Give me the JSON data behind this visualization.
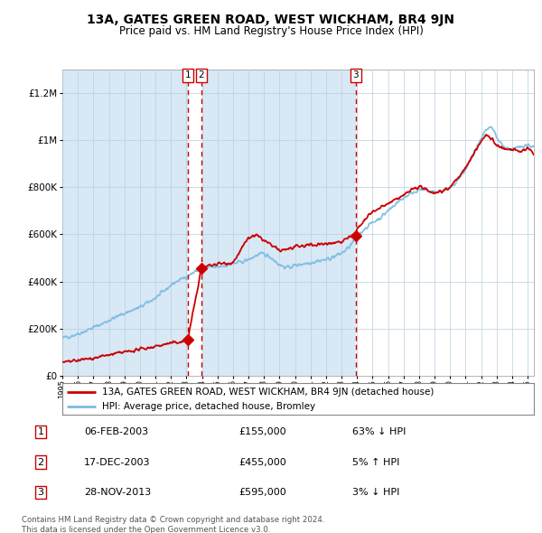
{
  "title": "13A, GATES GREEN ROAD, WEST WICKHAM, BR4 9JN",
  "subtitle": "Price paid vs. HM Land Registry's House Price Index (HPI)",
  "legend_line1": "13A, GATES GREEN ROAD, WEST WICKHAM, BR4 9JN (detached house)",
  "legend_line2": "HPI: Average price, detached house, Bromley",
  "table": [
    {
      "num": "1",
      "date": "06-FEB-2003",
      "price": "£155,000",
      "pct": "63% ↓ HPI"
    },
    {
      "num": "2",
      "date": "17-DEC-2003",
      "price": "£455,000",
      "pct": "5% ↑ HPI"
    },
    {
      "num": "3",
      "date": "28-NOV-2013",
      "price": "£595,000",
      "pct": "3% ↓ HPI"
    }
  ],
  "footnote1": "Contains HM Land Registry data © Crown copyright and database right 2024.",
  "footnote2": "This data is licensed under the Open Government Licence v3.0.",
  "sale_dates_dec": [
    2003.096,
    2003.962,
    2013.91
  ],
  "sale_prices": [
    155000,
    455000,
    595000
  ],
  "sale_labels": [
    "1",
    "2",
    "3"
  ],
  "hpi_color": "#7abce0",
  "price_color": "#cc0000",
  "background_color": "#d8e8f5",
  "plot_bg": "#ffffff",
  "grid_color": "#b8cfe0",
  "ylim": [
    0,
    1300000
  ],
  "xlim_start": 1995.0,
  "xlim_end": 2025.4,
  "hpi_anchors_t": [
    1995.0,
    1995.5,
    1996.0,
    1996.5,
    1997.0,
    1997.5,
    1998.0,
    1998.5,
    1999.0,
    1999.5,
    2000.0,
    2000.5,
    2001.0,
    2001.5,
    2002.0,
    2002.5,
    2003.0,
    2003.5,
    2004.0,
    2004.5,
    2005.0,
    2005.5,
    2006.0,
    2006.5,
    2007.0,
    2007.5,
    2008.0,
    2008.5,
    2009.0,
    2009.5,
    2010.0,
    2010.5,
    2011.0,
    2011.5,
    2012.0,
    2012.5,
    2013.0,
    2013.5,
    2014.0,
    2014.5,
    2015.0,
    2015.5,
    2016.0,
    2016.5,
    2017.0,
    2017.5,
    2018.0,
    2018.5,
    2019.0,
    2019.5,
    2020.0,
    2020.5,
    2021.0,
    2021.5,
    2022.0,
    2022.3,
    2022.6,
    2022.9,
    2023.0,
    2023.3,
    2023.6,
    2024.0,
    2024.3,
    2024.6,
    2025.0,
    2025.4
  ],
  "hpi_anchors_p": [
    160000,
    168000,
    178000,
    190000,
    205000,
    218000,
    235000,
    250000,
    265000,
    278000,
    290000,
    310000,
    330000,
    355000,
    385000,
    405000,
    420000,
    440000,
    455000,
    460000,
    462000,
    468000,
    475000,
    482000,
    492000,
    510000,
    518000,
    500000,
    470000,
    458000,
    468000,
    475000,
    480000,
    488000,
    492000,
    505000,
    520000,
    545000,
    590000,
    625000,
    650000,
    670000,
    700000,
    730000,
    755000,
    775000,
    790000,
    785000,
    778000,
    785000,
    795000,
    830000,
    875000,
    940000,
    1000000,
    1040000,
    1055000,
    1030000,
    1010000,
    985000,
    965000,
    960000,
    965000,
    975000,
    980000,
    970000
  ],
  "prop_anchors_t": [
    1995.0,
    1996.0,
    1997.0,
    1998.0,
    1999.0,
    2000.0,
    2001.0,
    2002.0,
    2003.0,
    2003.096,
    2003.096,
    2003.962,
    2003.962,
    2004.0,
    2004.5,
    2005.0,
    2006.0,
    2007.0,
    2007.5,
    2008.0,
    2009.0,
    2010.0,
    2011.0,
    2012.0,
    2013.0,
    2013.5,
    2013.91,
    2013.91,
    2014.0,
    2014.5,
    2015.0,
    2016.0,
    2017.0,
    2017.5,
    2018.0,
    2018.5,
    2019.0,
    2019.5,
    2020.0,
    2020.5,
    2021.0,
    2021.5,
    2022.0,
    2022.3,
    2022.6,
    2023.0,
    2023.5,
    2024.0,
    2024.5,
    2025.0,
    2025.4
  ],
  "prop_anchors_p": [
    55000,
    65000,
    75000,
    88000,
    100000,
    112000,
    125000,
    138000,
    148000,
    155000,
    155000,
    455000,
    455000,
    460000,
    468000,
    475000,
    480000,
    585000,
    595000,
    575000,
    530000,
    545000,
    555000,
    560000,
    570000,
    590000,
    595000,
    595000,
    620000,
    660000,
    695000,
    730000,
    765000,
    790000,
    800000,
    790000,
    775000,
    785000,
    800000,
    840000,
    880000,
    940000,
    995000,
    1020000,
    1010000,
    980000,
    960000,
    960000,
    950000,
    965000,
    940000
  ]
}
